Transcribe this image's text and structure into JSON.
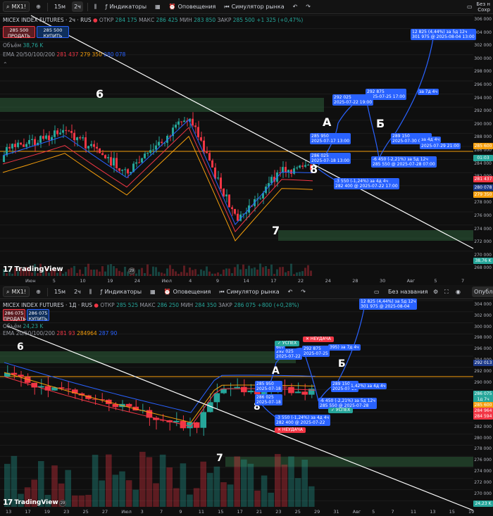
{
  "top": {
    "toolbar": {
      "symbol": "MX1!",
      "intervals": [
        "15м",
        "2ч"
      ],
      "indicators": "Индикаторы",
      "alerts": "Оповещения",
      "replay": "Симулятор рынка",
      "right_label": "Без н",
      "right_label2": "Сохр"
    },
    "legend": {
      "title": "MICEX INDEX FUTURES · 2ч · RUS",
      "open_k": "ОТКР",
      "open_v": "284 175",
      "high_k": "МАКС",
      "high_v": "286 425",
      "low_k": "МИН",
      "low_v": "283 850",
      "close_k": "ЗАКР",
      "close_v": "285 500",
      "change": "+1 325 (+0,47%)",
      "volume_k": "Объём",
      "volume_v": "38,76 K",
      "ema_k": "EMA 20/50/100/200",
      "ema_v1": "281 437",
      "ema_v2": "279 350",
      "ema_v3": "280 078"
    },
    "trade": {
      "sell_price": "285 500",
      "sell_label": "ПРОДАТЬ",
      "buy_price": "285 500",
      "buy_label": "КУПИТЬ"
    },
    "price_ticks": [
      "306 000",
      "304 000",
      "302 000",
      "300 000",
      "298 000",
      "296 000",
      "294 000",
      "292 000",
      "290 000",
      "288 000",
      "286 000",
      "284 000",
      "282 000",
      "280 000",
      "278 000",
      "276 000",
      "274 000",
      "272 000",
      "270 000",
      "268 000"
    ],
    "price_tags": [
      {
        "text": "285 600",
        "color": "#f59e0b"
      },
      {
        "text": "01:03",
        "color": "#26a69a"
      },
      {
        "text": "281 437",
        "color": "#f23645"
      },
      {
        "text": "280 078",
        "color": "#1e3a8a"
      },
      {
        "text": "279 350",
        "color": "#f59e0b"
      },
      {
        "text": "38,76 K",
        "color": "#26a69a"
      }
    ],
    "time_ticks": [
      "Июн",
      "5",
      "10",
      "19",
      "24",
      "Июл",
      "4",
      "9",
      "14",
      "17",
      "22",
      "24",
      "28",
      "30",
      "Авг",
      "5",
      "7"
    ],
    "waves": {
      "w6": "6",
      "w7": "7",
      "w8": "8",
      "wA": "A",
      "wB": "Б"
    },
    "labels": {
      "l1a": "12 825 (4,44%) за 5д 12ч",
      "l1b": "301 975 @ 2025-08-04  13:00",
      "l2a": "292 875",
      "l2b": "2025-07-25  17:00",
      "l3a": "292 025",
      "l3b": "2025-07-22  19:00",
      "l4a": "285 950",
      "l4b": "2025-07-17  13:00",
      "l5a": "286 025",
      "l5b": "2025-07-18  13:00",
      "l6a": "289 150",
      "l6b": "2025-07-30  01:00",
      "l7a": "-6 450 (-2,21%) за 5д 12ч",
      "l7b": "285 550 @ 2025-07-28  07:00",
      "l8a": "-3 550 (-1,24%) за 4д 4ч",
      "l8b": "282 400 @ 2025-07-22  17:00",
      "l9": "за 7д 4ч",
      "l10": "за 4д 4ч",
      "l11": "2025-07-29  21:00"
    },
    "logo": "TradingView"
  },
  "bottom": {
    "toolbar": {
      "symbol": "MX1!",
      "intervals": [
        "15м",
        "2ч"
      ],
      "indicators": "Индикаторы",
      "alerts": "Оповещения",
      "replay": "Симулятор рынка",
      "layout_name": "Без названия",
      "publish": "Опубли"
    },
    "legend": {
      "title": "MICEX INDEX FUTURES · 1Д · RUS",
      "open_k": "ОТКР",
      "open_v": "285 525",
      "high_k": "МАКС",
      "high_v": "286 250",
      "low_k": "МИН",
      "low_v": "284 350",
      "close_k": "ЗАКР",
      "close_v": "286 075",
      "change": "+800 (+0,28%)",
      "volume_k": "Объём",
      "volume_v": "24,23 K",
      "ema_k": "EMA 20/50/100/200",
      "ema_v1": "281 93",
      "ema_v2": "284964",
      "ema_v3": "287 90"
    },
    "trade": {
      "sell_price": "286 075",
      "sell_label": "ПРОДАТЬ",
      "buy_price": "286 075",
      "buy_label": "КУПИТЬ"
    },
    "price_ticks": [
      "304 000",
      "302 000",
      "300 000",
      "298 000",
      "296 000",
      "294 000",
      "292 000",
      "290 000",
      "288 000",
      "286 000",
      "284 000",
      "282 000",
      "280 000",
      "278 000",
      "276 000",
      "274 000",
      "272 000",
      "270 000",
      "268 000"
    ],
    "price_tags": [
      {
        "text": "292 013",
        "color": "#1e3a8a"
      },
      {
        "text": "286 075",
        "color": "#26a69a"
      },
      {
        "text": "1д 7ч",
        "color": "#26a69a"
      },
      {
        "text": "285 600",
        "color": "#f59e0b"
      },
      {
        "text": "284 964",
        "color": "#f23645"
      },
      {
        "text": "284 594",
        "color": "#f23645"
      },
      {
        "text": "24,23 K",
        "color": "#26a69a"
      }
    ],
    "time_ticks": [
      "13",
      "17",
      "19",
      "23",
      "25",
      "27",
      "Июл",
      "3",
      "7",
      "9",
      "11",
      "15",
      "17",
      "21",
      "23",
      "25",
      "29",
      "31",
      "Авг",
      "5",
      "7",
      "11",
      "13",
      "15",
      "19"
    ],
    "waves": {
      "w6": "6",
      "w7": "7",
      "w8": "8",
      "wA": "A",
      "wB": "Б"
    },
    "labels": {
      "l1a": "12 825 (4,44%) за 5д 12ч",
      "l1b": "301 975 @ 2025-08-04",
      "l2a": "292 875",
      "l2b": "2025-07-25",
      "l3a": "292 025",
      "l3b": "2025-07-22",
      "l4a": "285 950",
      "l4b": "2025-07-18",
      "l5a": "286 025",
      "l5b": "2025-07-18",
      "l6a": "289 150",
      "l6b": "2025-07-29",
      "l7a": "-6 450 (-2,21%) за 5д 12ч",
      "l7b": "285 550 @ 2025-07-28",
      "l8a": "-3 550 (-1,24%) за 4д 4ч",
      "l8b": "282 400 @ 2025-07-22",
      "l9": "395) за 7д 4ч",
      "l10": "1,42%) за 4д 4ч",
      "l11": "607"
    },
    "status": {
      "success1": "✓ УСПЕХ",
      "fail1": "✕ НЕУДАЧА",
      "success2": "✓ УСПЕХ",
      "fail2": "✕ НЕУДАЧА"
    },
    "logo": "TradingView"
  },
  "colors": {
    "bull": "#26a69a",
    "bear": "#f23645",
    "hline": "#f59e0b",
    "accent": "#2962ff",
    "trend": "#ffffff",
    "zone": "#2e5f3a"
  }
}
